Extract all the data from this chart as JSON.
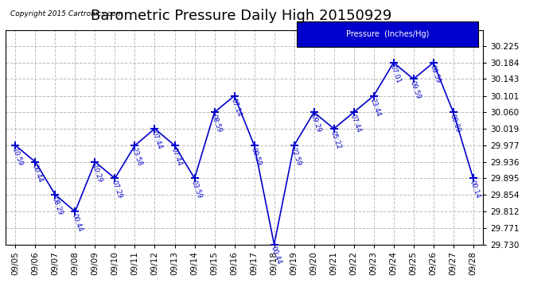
{
  "title": "Barometric Pressure Daily High 20150929",
  "copyright": "Copyright 2015 Cartronics.com",
  "legend_label": "Pressure  (Inches/Hg)",
  "dates": [
    "09/05",
    "09/06",
    "09/07",
    "09/08",
    "09/09",
    "09/10",
    "09/11",
    "09/12",
    "09/13",
    "09/14",
    "09/15",
    "09/16",
    "09/17",
    "09/18",
    "09/19",
    "09/20",
    "09/21",
    "09/22",
    "09/23",
    "09/24",
    "09/25",
    "09/26",
    "09/27",
    "09/28"
  ],
  "values": [
    29.977,
    29.936,
    29.854,
    29.812,
    29.936,
    29.895,
    29.977,
    30.019,
    29.977,
    29.895,
    30.06,
    30.101,
    29.977,
    29.73,
    29.977,
    30.06,
    30.019,
    30.06,
    30.101,
    30.184,
    30.143,
    30.184,
    30.06,
    29.895
  ],
  "time_labels": [
    "10:59",
    "00:44",
    "08:29",
    "00:44",
    "10:29",
    "07:29",
    "23:58",
    "07:44",
    "07:44",
    "03:59",
    "08:59",
    "07:14",
    "00:59",
    "00:44",
    "22:59",
    "09:29",
    "05:22",
    "07:44",
    "23:44",
    "07:01",
    "09:59",
    "09:59",
    "00:00",
    "00:14"
  ],
  "line_color": "#0000cc",
  "marker_color": "#0000cc",
  "bg_color": "#ffffff",
  "grid_color": "#bbbbbb",
  "title_fontsize": 13,
  "ylim_min": 29.73,
  "ylim_max": 30.266,
  "yticks": [
    29.73,
    29.771,
    29.812,
    29.854,
    29.895,
    29.936,
    29.977,
    30.019,
    30.06,
    30.101,
    30.143,
    30.184,
    30.225
  ],
  "legend_bg": "#0000cc",
  "legend_fg": "#ffffff"
}
